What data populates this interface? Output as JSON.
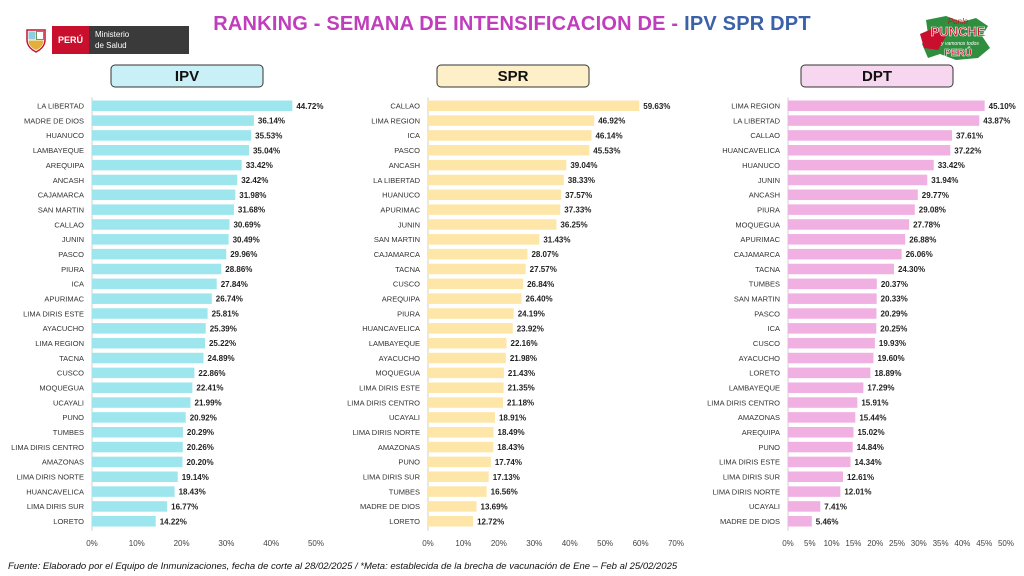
{
  "header": {
    "title_part1": "RANKING - SEMANA DE INTENSIFICACION DE - ",
    "title_part2": "IPV SPR DPT",
    "logo_left": {
      "country": "PERÚ",
      "ministry_line1": "Ministerio",
      "ministry_line2": "de Salud"
    },
    "logo_right": {
      "line1": "Ponle",
      "line2": "PUNCHE",
      "line3": "y vamonos todos",
      "line4": "PERÚ"
    }
  },
  "colors": {
    "ipv_bar": "#9de6ee",
    "ipv_header": "#c9f0f6",
    "spr_bar": "#fde6a8",
    "spr_header": "#fdf0c8",
    "dpt_bar": "#f0b0e2",
    "dpt_header": "#f7d6ef",
    "title_magenta": "#c03dbc",
    "title_blue": "#3b61a8"
  },
  "chart_data": [
    {
      "type": "bar",
      "orientation": "horizontal",
      "title": "IPV",
      "categories": [
        "LA LIBERTAD",
        "MADRE DE DIOS",
        "HUANUCO",
        "LAMBAYEQUE",
        "AREQUIPA",
        "ANCASH",
        "CAJAMARCA",
        "SAN MARTIN",
        "CALLAO",
        "JUNIN",
        "PASCO",
        "PIURA",
        "ICA",
        "APURIMAC",
        "LIMA DIRIS ESTE",
        "AYACUCHO",
        "LIMA REGION",
        "TACNA",
        "CUSCO",
        "MOQUEGUA",
        "UCAYALI",
        "PUNO",
        "TUMBES",
        "LIMA DIRIS CENTRO",
        "AMAZONAS",
        "LIMA DIRIS NORTE",
        "HUANCAVELICA",
        "LIMA DIRIS SUR",
        "LORETO"
      ],
      "values": [
        44.72,
        36.14,
        35.53,
        35.04,
        33.42,
        32.42,
        31.98,
        31.68,
        30.69,
        30.49,
        29.96,
        28.86,
        27.84,
        26.74,
        25.81,
        25.39,
        25.22,
        24.89,
        22.86,
        22.41,
        21.99,
        20.92,
        20.29,
        20.26,
        20.2,
        19.14,
        18.43,
        16.77,
        14.22
      ],
      "value_labels": [
        "44.72%",
        "36.14%",
        "35.53%",
        "35.04%",
        "33.42%",
        "32.42%",
        "31.98%",
        "31.68%",
        "30.69%",
        "30.49%",
        "29.96%",
        "28.86%",
        "27.84%",
        "26.74%",
        "25.81%",
        "25.39%",
        "25.22%",
        "24.89%",
        "22.86%",
        "22.41%",
        "21.99%",
        "20.92%",
        "20.29%",
        "20.26%",
        "20.20%",
        "19.14%",
        "18.43%",
        "16.77%",
        "14.22%"
      ],
      "xlim": [
        0,
        50
      ],
      "ticks": [
        0,
        10,
        20,
        30,
        40,
        50
      ],
      "tick_labels": [
        "0%",
        "10%",
        "20%",
        "30%",
        "40%",
        "50%"
      ]
    },
    {
      "type": "bar",
      "orientation": "horizontal",
      "title": "SPR",
      "categories": [
        "CALLAO",
        "LIMA REGION",
        "ICA",
        "PASCO",
        "ANCASH",
        "LA LIBERTAD",
        "HUANUCO",
        "APURIMAC",
        "JUNIN",
        "SAN MARTIN",
        "CAJAMARCA",
        "TACNA",
        "CUSCO",
        "AREQUIPA",
        "PIURA",
        "HUANCAVELICA",
        "LAMBAYEQUE",
        "AYACUCHO",
        "MOQUEGUA",
        "LIMA DIRIS ESTE",
        "LIMA DIRIS CENTRO",
        "UCAYALI",
        "LIMA DIRIS NORTE",
        "AMAZONAS",
        "PUNO",
        "LIMA DIRIS SUR",
        "TUMBES",
        "MADRE DE DIOS",
        "LORETO"
      ],
      "values": [
        59.63,
        46.92,
        46.14,
        45.53,
        39.04,
        38.33,
        37.57,
        37.33,
        36.25,
        31.43,
        28.07,
        27.57,
        26.84,
        26.4,
        24.19,
        23.92,
        22.16,
        21.98,
        21.43,
        21.35,
        21.18,
        18.91,
        18.49,
        18.43,
        17.74,
        17.13,
        16.56,
        13.69,
        12.72
      ],
      "value_labels": [
        "59.63%",
        "46.92%",
        "46.14%",
        "45.53%",
        "39.04%",
        "38.33%",
        "37.57%",
        "37.33%",
        "36.25%",
        "31.43%",
        "28.07%",
        "27.57%",
        "26.84%",
        "26.40%",
        "24.19%",
        "23.92%",
        "22.16%",
        "21.98%",
        "21.43%",
        "21.35%",
        "21.18%",
        "18.91%",
        "18.49%",
        "18.43%",
        "17.74%",
        "17.13%",
        "16.56%",
        "13.69%",
        "12.72%"
      ],
      "xlim": [
        0,
        70
      ],
      "ticks": [
        0,
        10,
        20,
        30,
        40,
        50,
        60,
        70
      ],
      "tick_labels": [
        "0%",
        "10%",
        "20%",
        "30%",
        "40%",
        "50%",
        "60%",
        "70%"
      ]
    },
    {
      "type": "bar",
      "orientation": "horizontal",
      "title": "DPT",
      "categories": [
        "LIMA REGION",
        "LA LIBERTAD",
        "CALLAO",
        "HUANCAVELICA",
        "HUANUCO",
        "JUNIN",
        "ANCASH",
        "PIURA",
        "MOQUEGUA",
        "APURIMAC",
        "CAJAMARCA",
        "TACNA",
        "TUMBES",
        "SAN MARTIN",
        "PASCO",
        "ICA",
        "CUSCO",
        "AYACUCHO",
        "LORETO",
        "LAMBAYEQUE",
        "LIMA DIRIS CENTRO",
        "AMAZONAS",
        "AREQUIPA",
        "PUNO",
        "LIMA DIRIS ESTE",
        "LIMA DIRIS SUR",
        "LIMA DIRIS NORTE",
        "UCAYALI",
        "MADRE DE DIOS"
      ],
      "values": [
        45.1,
        43.87,
        37.61,
        37.22,
        33.42,
        31.94,
        29.77,
        29.08,
        27.78,
        26.88,
        26.06,
        24.3,
        20.37,
        20.33,
        20.29,
        20.25,
        19.93,
        19.6,
        18.89,
        17.29,
        15.91,
        15.44,
        15.02,
        14.84,
        14.34,
        12.61,
        12.01,
        7.41,
        5.46
      ],
      "value_labels": [
        "45.10%",
        "43.87%",
        "37.61%",
        "37.22%",
        "33.42%",
        "31.94%",
        "29.77%",
        "29.08%",
        "27.78%",
        "26.88%",
        "26.06%",
        "24.30%",
        "20.37%",
        "20.33%",
        "20.29%",
        "20.25%",
        "19.93%",
        "19.60%",
        "18.89%",
        "17.29%",
        "15.91%",
        "15.44%",
        "15.02%",
        "14.84%",
        "14.34%",
        "12.61%",
        "12.01%",
        "7.41%",
        "5.46%"
      ],
      "xlim": [
        0,
        50
      ],
      "ticks": [
        0,
        5,
        10,
        15,
        20,
        25,
        30,
        35,
        40,
        45,
        50
      ],
      "tick_labels": [
        "0%",
        "5%",
        "10%",
        "15%",
        "20%",
        "25%",
        "30%",
        "35%",
        "40%",
        "45%",
        "50%"
      ]
    }
  ],
  "footnote": "Fuente: Elaborado por el Equipo de Inmunizaciones, fecha de corte al 28/02/2025 / *Meta: establecida de la brecha de vacunación de Ene – Feb al 25/02/2025"
}
